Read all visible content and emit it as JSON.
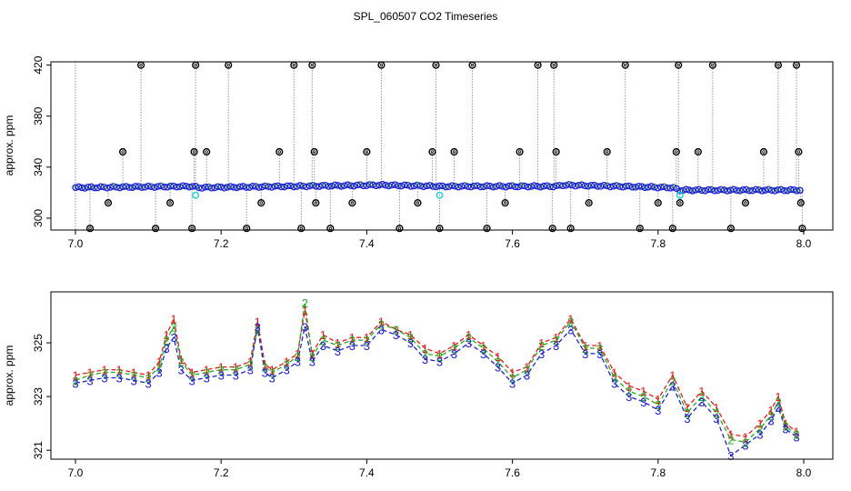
{
  "title": "SPL_060507  CO2 Timeseries",
  "colors": {
    "c1": "#e41a1c",
    "c2": "#22aa22",
    "c3": "#2222cc",
    "blue": "#1f1fd8",
    "cyan": "#22d0e0",
    "grey": "#8c8c8c"
  },
  "chart_data": [
    {
      "type": "scatter",
      "name": "top-panel",
      "xlabel": "",
      "ylabel": "approx. ppm",
      "xlim": [
        7.0,
        8.0
      ],
      "ylim": [
        290,
        424
      ],
      "x_ticks": [
        7.0,
        7.2,
        7.4,
        7.6,
        7.8,
        8.0
      ],
      "x_tick_labels": [
        "7.0",
        "7.2",
        "7.4",
        "7.6",
        "7.8",
        "8.0"
      ],
      "y_ticks": [
        300,
        340,
        380,
        420
      ],
      "y_tick_labels": [
        "300",
        "340",
        "380",
        "420"
      ],
      "baseline": {
        "x": [
          7.0,
          7.16,
          7.17,
          7.42,
          7.5,
          7.66,
          7.67,
          7.82,
          7.83,
          7.99
        ],
        "y": [
          324,
          325,
          324,
          326,
          325,
          325,
          326,
          324,
          322,
          322
        ]
      },
      "outliers": {
        "x": [
          7.02,
          7.045,
          7.065,
          7.09,
          7.11,
          7.13,
          7.16,
          7.163,
          7.165,
          7.18,
          7.21,
          7.235,
          7.255,
          7.28,
          7.3,
          7.31,
          7.325,
          7.328,
          7.33,
          7.35,
          7.38,
          7.4,
          7.42,
          7.445,
          7.47,
          7.49,
          7.495,
          7.5,
          7.52,
          7.545,
          7.565,
          7.59,
          7.61,
          7.635,
          7.655,
          7.657,
          7.66,
          7.68,
          7.705,
          7.73,
          7.755,
          7.775,
          7.8,
          7.82,
          7.825,
          7.828,
          7.83,
          7.855,
          7.875,
          7.9,
          7.92,
          7.945,
          7.965,
          7.99,
          7.993,
          7.996,
          7.998
        ],
        "y": [
          292,
          312,
          352,
          420,
          292,
          312,
          292,
          352,
          420,
          352,
          420,
          292,
          312,
          352,
          420,
          292,
          420,
          352,
          312,
          292,
          312,
          352,
          420,
          292,
          312,
          352,
          420,
          292,
          352,
          420,
          292,
          312,
          352,
          420,
          292,
          420,
          352,
          292,
          312,
          352,
          420,
          292,
          312,
          292,
          352,
          420,
          312,
          352,
          420,
          292,
          312,
          352,
          420,
          420,
          352,
          312,
          292
        ]
      },
      "cyan_markers": {
        "x": [
          7.165,
          7.5,
          7.83
        ],
        "y": [
          318,
          318,
          318
        ]
      }
    },
    {
      "type": "line",
      "name": "bottom-panel",
      "xlabel": "",
      "ylabel": "approx. ppm",
      "xlim": [
        7.0,
        8.0
      ],
      "ylim": [
        320.6,
        327.0
      ],
      "x_ticks": [
        7.0,
        7.2,
        7.4,
        7.6,
        7.8,
        8.0
      ],
      "x_tick_labels": [
        "7.0",
        "7.2",
        "7.4",
        "7.6",
        "7.8",
        "8.0"
      ],
      "y_ticks": [
        321,
        323,
        325
      ],
      "y_tick_labels": [
        "321",
        "323",
        "325"
      ],
      "series_names": [
        "1",
        "2",
        "3"
      ],
      "x": [
        7.0,
        7.02,
        7.04,
        7.06,
        7.08,
        7.1,
        7.115,
        7.125,
        7.135,
        7.145,
        7.16,
        7.18,
        7.2,
        7.22,
        7.24,
        7.25,
        7.26,
        7.27,
        7.29,
        7.305,
        7.315,
        7.325,
        7.34,
        7.36,
        7.38,
        7.4,
        7.42,
        7.44,
        7.46,
        7.48,
        7.5,
        7.52,
        7.54,
        7.56,
        7.58,
        7.6,
        7.62,
        7.64,
        7.66,
        7.68,
        7.7,
        7.72,
        7.74,
        7.76,
        7.78,
        7.8,
        7.82,
        7.84,
        7.86,
        7.88,
        7.9,
        7.92,
        7.94,
        7.955,
        7.965,
        7.975,
        7.99
      ],
      "series": [
        {
          "name": "1",
          "values": [
            323.8,
            323.9,
            324.0,
            324.0,
            323.9,
            323.8,
            324.3,
            325.3,
            325.9,
            324.4,
            323.9,
            324.0,
            324.1,
            324.1,
            324.3,
            325.8,
            324.2,
            324.0,
            324.3,
            324.6,
            326.2,
            324.6,
            325.3,
            325.0,
            325.2,
            325.2,
            325.8,
            325.5,
            325.3,
            324.8,
            324.6,
            324.9,
            325.3,
            324.9,
            324.5,
            323.9,
            324.1,
            325.0,
            325.2,
            325.9,
            324.9,
            324.9,
            323.9,
            323.4,
            323.2,
            322.9,
            323.8,
            322.6,
            323.2,
            322.6,
            321.6,
            321.5,
            322.0,
            322.5,
            323.0,
            322.0,
            321.7
          ]
        },
        {
          "name": "2",
          "values": [
            323.6,
            323.8,
            323.9,
            323.9,
            323.8,
            323.7,
            324.1,
            325.1,
            325.6,
            324.3,
            323.8,
            323.9,
            324.0,
            324.0,
            324.2,
            325.5,
            324.1,
            323.9,
            324.2,
            324.5,
            326.5,
            324.5,
            325.1,
            324.9,
            325.1,
            325.1,
            325.7,
            325.5,
            325.2,
            324.6,
            324.5,
            324.8,
            325.2,
            324.8,
            324.3,
            323.7,
            324.0,
            324.9,
            325.1,
            325.8,
            324.8,
            324.8,
            323.7,
            323.2,
            323.0,
            322.7,
            323.6,
            322.4,
            323.0,
            322.4,
            321.4,
            321.3,
            321.8,
            322.3,
            322.8,
            321.9,
            321.6
          ]
        },
        {
          "name": "3",
          "values": [
            323.5,
            323.6,
            323.7,
            323.7,
            323.6,
            323.5,
            323.9,
            324.8,
            325.2,
            324.0,
            323.6,
            323.7,
            323.8,
            323.8,
            324.0,
            325.6,
            323.9,
            323.7,
            324.0,
            324.3,
            325.6,
            324.3,
            324.9,
            324.7,
            324.9,
            324.9,
            325.5,
            325.3,
            325.0,
            324.4,
            324.3,
            324.6,
            325.0,
            324.6,
            324.1,
            323.5,
            323.8,
            324.6,
            324.9,
            325.5,
            324.6,
            324.6,
            323.5,
            323.0,
            322.8,
            322.5,
            323.4,
            322.2,
            322.8,
            322.2,
            320.8,
            321.2,
            321.6,
            322.1,
            322.6,
            321.8,
            321.5
          ]
        }
      ]
    }
  ]
}
